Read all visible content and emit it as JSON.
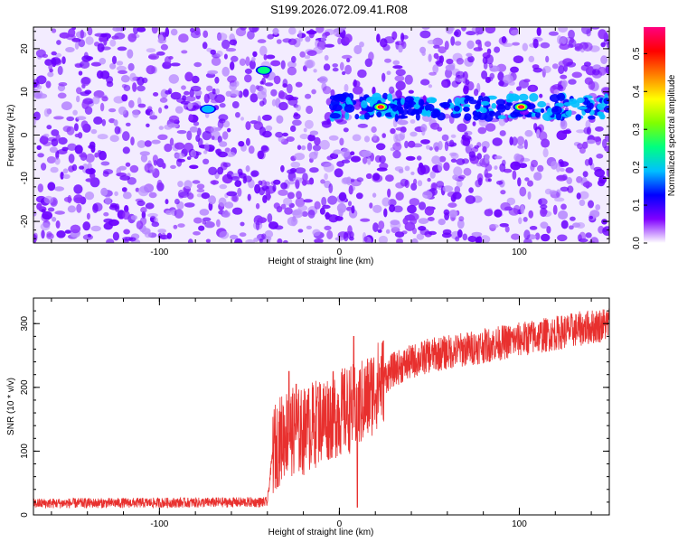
{
  "title": "S199.2026.072.09.41.R08",
  "chart_data": [
    {
      "type": "heatmap",
      "xlabel": "Height of straight line (km)",
      "ylabel": "Frequency (Hz)",
      "xlim": [
        -170,
        150
      ],
      "ylim": [
        -25,
        25
      ],
      "x_ticks": [
        -100,
        0,
        100
      ],
      "y_ticks": [
        -20,
        -10,
        0,
        10,
        20
      ],
      "colorbar": {
        "label": "Normalized spectral amplitude",
        "range": [
          0.0,
          0.57
        ],
        "ticks": [
          0.0,
          0.1,
          0.2,
          0.3,
          0.4,
          0.5
        ],
        "colors": [
          "#ffffff",
          "#8000ff",
          "#0000ff",
          "#00c0ff",
          "#00ff80",
          "#80ff00",
          "#ffff00",
          "#ff8000",
          "#ff0000",
          "#ff0080"
        ]
      },
      "features": [
        {
          "x_range": [
            -5,
            150
          ],
          "frequency": 6.5,
          "note": "band"
        },
        {
          "x": 23,
          "frequency": 6.5,
          "amplitude": 0.57
        },
        {
          "x": 101,
          "frequency": 6.5,
          "amplitude": 0.55
        },
        {
          "x": -42,
          "frequency": 15,
          "amplitude": 0.2
        },
        {
          "x": -73,
          "frequency": 6,
          "amplitude": 0.15
        }
      ]
    },
    {
      "type": "line",
      "xlabel": "Height of straight line (km)",
      "ylabel": "SNR (10 * v/v)",
      "xlim": [
        -170,
        150
      ],
      "ylim": [
        0,
        340
      ],
      "x_ticks": [
        -100,
        0,
        100
      ],
      "y_ticks": [
        0,
        100,
        200,
        300
      ],
      "series": [
        {
          "color": "#e8302e",
          "envelope": [
            {
              "x": -170,
              "value": 18
            },
            {
              "x": -40,
              "value": 20
            },
            {
              "x": -37,
              "value": 100
            },
            {
              "x": -30,
              "value": 130
            },
            {
              "x": -20,
              "value": 130
            },
            {
              "x": -10,
              "value": 150
            },
            {
              "x": 5,
              "value": 165
            },
            {
              "x": 10,
              "value": 170
            },
            {
              "x": 15,
              "value": 180
            },
            {
              "x": 20,
              "value": 200
            },
            {
              "x": 25,
              "value": 215
            },
            {
              "x": 30,
              "value": 228
            },
            {
              "x": 40,
              "value": 240
            },
            {
              "x": 50,
              "value": 250
            },
            {
              "x": 60,
              "value": 255
            },
            {
              "x": 70,
              "value": 260
            },
            {
              "x": 80,
              "value": 265
            },
            {
              "x": 100,
              "value": 275
            },
            {
              "x": 120,
              "value": 285
            },
            {
              "x": 150,
              "value": 300
            }
          ],
          "spikes": [
            {
              "x": -28,
              "value": 225
            },
            {
              "x": -24,
              "value": 205
            },
            {
              "x": 8,
              "value": 280
            },
            {
              "x": 10,
              "value": 12
            },
            {
              "x": -18,
              "value": 180
            },
            {
              "x": -12,
              "value": 200
            }
          ]
        }
      ]
    }
  ]
}
